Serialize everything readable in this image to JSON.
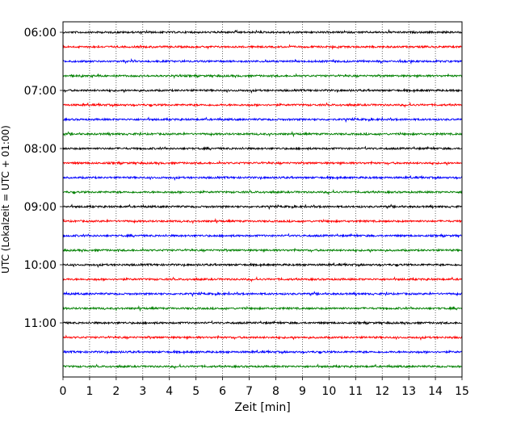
{
  "chart_data": {
    "type": "line",
    "title": "",
    "xlabel": "Zeit  [min]",
    "ylabel": "UTC (Lokalzeit = UTC + 01:00)",
    "xlim": [
      0,
      15
    ],
    "x_ticks": [
      "0",
      "1",
      "2",
      "3",
      "4",
      "5",
      "6",
      "7",
      "8",
      "9",
      "10",
      "11",
      "12",
      "13",
      "14",
      "15"
    ],
    "y_tick_labels": [
      "06:00",
      "07:00",
      "08:00",
      "09:00",
      "10:00",
      "11:00"
    ],
    "y_tick_hours_utc": [
      6,
      7,
      8,
      9,
      10,
      11
    ],
    "grid": "vertical dotted lines at each minute",
    "legend": "none",
    "trace_interval_min": 15,
    "trace_start_times_utc": [
      "06:00",
      "06:15",
      "06:30",
      "06:45",
      "07:00",
      "07:15",
      "07:30",
      "07:45",
      "08:00",
      "08:15",
      "08:30",
      "08:45",
      "09:00",
      "09:15",
      "09:30",
      "09:45",
      "10:00",
      "10:15",
      "10:30",
      "10:45",
      "11:00",
      "11:15",
      "11:30",
      "11:45"
    ],
    "trace_colors_cycle": [
      "#000000",
      "#ff0000",
      "#0000ff",
      "#008000"
    ]
  }
}
